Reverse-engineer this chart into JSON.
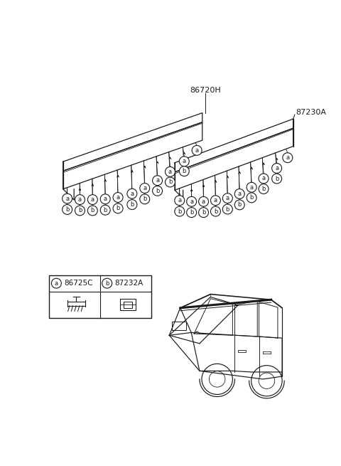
{
  "bg_color": "#ffffff",
  "line_color": "#1a1a1a",
  "label_86720H": "86720H",
  "label_87230A": "87230A",
  "label_a_part": "86725C",
  "label_b_part": "87232A",
  "font_size_part": 8.0,
  "font_size_legend": 7.5,
  "clip_r": 9
}
